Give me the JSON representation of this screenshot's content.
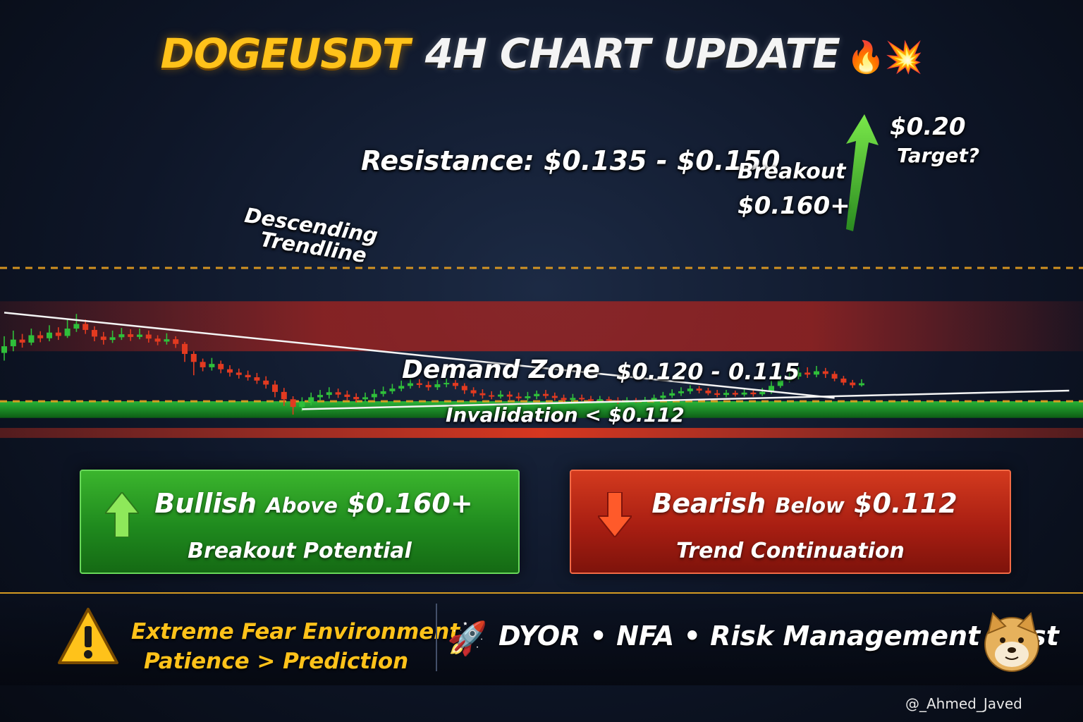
{
  "header": {
    "title_main": "DOGEUSDT",
    "title_sub": "4H CHART UPDATE",
    "title_emoji": "🔥💥"
  },
  "chart_data": {
    "type": "candlestick",
    "symbol": "DOGEUSDT",
    "timeframe": "4H",
    "ylim": [
      0.105,
      0.215
    ],
    "candles": [
      [
        0.1345,
        0.1365,
        0.1395,
        0.1322
      ],
      [
        0.1365,
        0.1385,
        0.1412,
        0.135
      ],
      [
        0.1385,
        0.1376,
        0.1402,
        0.1361
      ],
      [
        0.1376,
        0.1398,
        0.1418,
        0.1368
      ],
      [
        0.1398,
        0.1389,
        0.141,
        0.1377
      ],
      [
        0.1389,
        0.1406,
        0.1428,
        0.138
      ],
      [
        0.1406,
        0.1396,
        0.1422,
        0.1384
      ],
      [
        0.1396,
        0.1418,
        0.1448,
        0.139
      ],
      [
        0.1418,
        0.1432,
        0.1462,
        0.1408
      ],
      [
        0.1432,
        0.1414,
        0.1445,
        0.1402
      ],
      [
        0.1414,
        0.1394,
        0.1425,
        0.138
      ],
      [
        0.1394,
        0.1384,
        0.1408,
        0.137
      ],
      [
        0.1384,
        0.1392,
        0.1412,
        0.1375
      ],
      [
        0.1392,
        0.1401,
        0.142,
        0.1384
      ],
      [
        0.1401,
        0.1393,
        0.1416,
        0.1381
      ],
      [
        0.1393,
        0.14,
        0.1418,
        0.1386
      ],
      [
        0.14,
        0.1388,
        0.1412,
        0.1376
      ],
      [
        0.1388,
        0.1379,
        0.1398,
        0.1368
      ],
      [
        0.1379,
        0.1386,
        0.1404,
        0.137
      ],
      [
        0.1386,
        0.1372,
        0.1395,
        0.136
      ],
      [
        0.1372,
        0.1342,
        0.1378,
        0.1318
      ],
      [
        0.1342,
        0.1318,
        0.135,
        0.1278
      ],
      [
        0.1318,
        0.1302,
        0.1328,
        0.129
      ],
      [
        0.1302,
        0.1312,
        0.133,
        0.1292
      ],
      [
        0.1312,
        0.1296,
        0.1322,
        0.1284
      ],
      [
        0.1296,
        0.1286,
        0.1308,
        0.1274
      ],
      [
        0.1286,
        0.1279,
        0.1298,
        0.1268
      ],
      [
        0.1279,
        0.1272,
        0.1292,
        0.1262
      ],
      [
        0.1272,
        0.1262,
        0.1285,
        0.1252
      ],
      [
        0.1262,
        0.125,
        0.1275,
        0.1238
      ],
      [
        0.125,
        0.1228,
        0.1262,
        0.1212
      ],
      [
        0.1228,
        0.1206,
        0.124,
        0.1186
      ],
      [
        0.1206,
        0.1183,
        0.1215,
        0.116
      ],
      [
        0.1183,
        0.1198,
        0.1212,
        0.117
      ],
      [
        0.1198,
        0.1212,
        0.1226,
        0.1188
      ],
      [
        0.1212,
        0.1219,
        0.1234,
        0.1202
      ],
      [
        0.1219,
        0.1227,
        0.1242,
        0.1208
      ],
      [
        0.1227,
        0.122,
        0.1238,
        0.121
      ],
      [
        0.122,
        0.1213,
        0.1232,
        0.1202
      ],
      [
        0.1213,
        0.1206,
        0.1224,
        0.1196
      ],
      [
        0.1206,
        0.1212,
        0.1226,
        0.1198
      ],
      [
        0.1212,
        0.1222,
        0.1236,
        0.1204
      ],
      [
        0.1222,
        0.123,
        0.1244,
        0.1214
      ],
      [
        0.123,
        0.1238,
        0.1252,
        0.1222
      ],
      [
        0.1238,
        0.1246,
        0.1262,
        0.123
      ],
      [
        0.1246,
        0.1254,
        0.127,
        0.1238
      ],
      [
        0.1254,
        0.1249,
        0.1266,
        0.124
      ],
      [
        0.1249,
        0.1242,
        0.126,
        0.1232
      ],
      [
        0.1242,
        0.1251,
        0.1264,
        0.1234
      ],
      [
        0.1251,
        0.1255,
        0.1268,
        0.1242
      ],
      [
        0.1255,
        0.1246,
        0.1264,
        0.1236
      ],
      [
        0.1246,
        0.1233,
        0.1254,
        0.1222
      ],
      [
        0.1233,
        0.1224,
        0.1242,
        0.1214
      ],
      [
        0.1224,
        0.1218,
        0.1236,
        0.1208
      ],
      [
        0.1218,
        0.1214,
        0.123,
        0.1206
      ],
      [
        0.1214,
        0.122,
        0.1232,
        0.1208
      ],
      [
        0.122,
        0.1214,
        0.123,
        0.1204
      ],
      [
        0.1214,
        0.1209,
        0.1226,
        0.12
      ],
      [
        0.1209,
        0.1215,
        0.1228,
        0.1202
      ],
      [
        0.1215,
        0.1222,
        0.1232,
        0.1206
      ],
      [
        0.1222,
        0.1216,
        0.1234,
        0.1208
      ],
      [
        0.1216,
        0.121,
        0.1226,
        0.1202
      ],
      [
        0.121,
        0.1204,
        0.122,
        0.1196
      ],
      [
        0.1204,
        0.121,
        0.1222,
        0.1198
      ],
      [
        0.121,
        0.1206,
        0.122,
        0.12
      ],
      [
        0.1206,
        0.1201,
        0.1216,
        0.1194
      ],
      [
        0.1201,
        0.1206,
        0.1216,
        0.1196
      ],
      [
        0.1206,
        0.1203,
        0.1214,
        0.1197
      ],
      [
        0.1203,
        0.1198,
        0.1212,
        0.1192
      ],
      [
        0.1198,
        0.1203,
        0.1212,
        0.1194
      ],
      [
        0.1203,
        0.12,
        0.121,
        0.1196
      ],
      [
        0.12,
        0.1204,
        0.1213,
        0.1196
      ],
      [
        0.1204,
        0.121,
        0.122,
        0.1198
      ],
      [
        0.121,
        0.1217,
        0.1228,
        0.1204
      ],
      [
        0.1217,
        0.1224,
        0.1236,
        0.121
      ],
      [
        0.1224,
        0.123,
        0.1242,
        0.1216
      ],
      [
        0.123,
        0.1238,
        0.1248,
        0.1222
      ],
      [
        0.1238,
        0.1232,
        0.1246,
        0.1224
      ],
      [
        0.1232,
        0.1224,
        0.124,
        0.1218
      ],
      [
        0.1224,
        0.1219,
        0.1234,
        0.1212
      ],
      [
        0.1219,
        0.1225,
        0.1234,
        0.1212
      ],
      [
        0.1225,
        0.122,
        0.1232,
        0.1214
      ],
      [
        0.122,
        0.1226,
        0.1236,
        0.1214
      ],
      [
        0.1226,
        0.1221,
        0.1234,
        0.1214
      ],
      [
        0.1221,
        0.1228,
        0.124,
        0.1216
      ],
      [
        0.1228,
        0.1246,
        0.1262,
        0.1222
      ],
      [
        0.1246,
        0.1262,
        0.1278,
        0.124
      ],
      [
        0.1262,
        0.1274,
        0.1292,
        0.1256
      ],
      [
        0.1274,
        0.1286,
        0.1302,
        0.1266
      ],
      [
        0.1286,
        0.128,
        0.1302,
        0.127
      ],
      [
        0.128,
        0.129,
        0.1306,
        0.1272
      ],
      [
        0.129,
        0.1282,
        0.13,
        0.127
      ],
      [
        0.1282,
        0.1268,
        0.129,
        0.126
      ],
      [
        0.1268,
        0.1256,
        0.1276,
        0.1248
      ],
      [
        0.1256,
        0.1248,
        0.1264,
        0.124
      ],
      [
        0.1248,
        0.1254,
        0.1266,
        0.1244
      ]
    ],
    "lines": [
      {
        "name": "Descending Trendline",
        "from": [
          0,
          0.1466
        ],
        "to": [
          92,
          0.121
        ]
      },
      {
        "name": "Ascending support",
        "from": [
          33,
          0.1176
        ],
        "to": [
          118,
          0.1232
        ]
      }
    ],
    "zones": [
      {
        "name": "Resistance",
        "low": 0.135,
        "high": 0.15,
        "color": "#c0241b"
      },
      {
        "name": "Demand Zone",
        "low": 0.115,
        "high": 0.12,
        "color": "#18a320"
      },
      {
        "name": "Invalidation",
        "low": 0.109,
        "high": 0.112,
        "color": "#d8301c"
      }
    ],
    "levels": [
      {
        "name": "Breakout",
        "value": 0.16,
        "color": "#e8a020",
        "style": "dashed"
      },
      {
        "name": "Demand top",
        "value": 0.12,
        "color": "#e8a020",
        "style": "dashed"
      }
    ],
    "target": 0.2,
    "annotations": {
      "resistance": "Resistance: $0.135 - $0.150",
      "trendline_1": "Descending",
      "trendline_2": "Trendline",
      "breakout_1": "Breakout",
      "breakout_2": "$0.160+",
      "target_1": "$0.20",
      "target_2": "Target?",
      "demand_1": "Demand Zone",
      "demand_2": "$0.120 - 0.115",
      "invalidation": "Invalidation < $0.112"
    },
    "colors": {
      "up": "#2fbf3a",
      "down": "#e23a20",
      "target_arrow": "#4fd03a"
    }
  },
  "panels": {
    "bull": {
      "head_1": "Bullish",
      "head_2": "Above",
      "head_3": "$0.160+",
      "sub": "Breakout Potential",
      "icon": "up-arrow-icon"
    },
    "bear": {
      "head_1": "Bearish",
      "head_2": "Below",
      "head_3": "$0.112",
      "sub": "Trend Continuation",
      "icon": "down-arrow-icon"
    }
  },
  "footer": {
    "warn_line1": "Extreme Fear Environment",
    "warn_line2": "Patience > Prediction",
    "disclaimer": "DYOR • NFA • Risk Management First",
    "rocket": "🚀",
    "watermark": "@_Ahmed_Javed"
  }
}
